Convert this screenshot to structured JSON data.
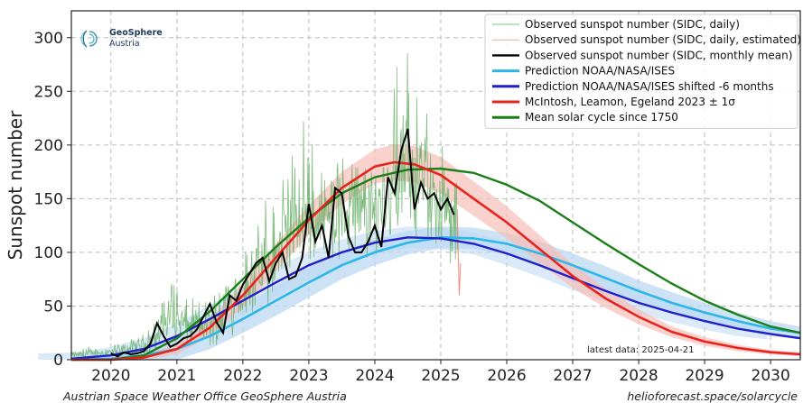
{
  "chart_data": {
    "type": "line",
    "ylabel": "Sunspot number",
    "xlim": [
      2019.4,
      2030.45
    ],
    "ylim": [
      0,
      325
    ],
    "x_ticks": [
      2020,
      2021,
      2022,
      2023,
      2024,
      2025,
      2026,
      2027,
      2028,
      2029,
      2030
    ],
    "x_tick_labels": [
      "2020",
      "2021",
      "2022",
      "2023",
      "2024",
      "2025",
      "2026",
      "2027",
      "2028",
      "2029",
      "2030"
    ],
    "y_ticks": [
      0,
      50,
      100,
      150,
      200,
      250,
      300
    ],
    "y_tick_labels": [
      "0",
      "50",
      "100",
      "150",
      "200",
      "250",
      "300"
    ],
    "grid": true,
    "legend_position": "top-right",
    "series": [
      {
        "name": "Observed sunspot number (SIDC, daily)",
        "color": "#6ab06a",
        "style": "thin-noisy",
        "envelope": {
          "x": [
            2019.4,
            2019.8,
            2020.2,
            2020.6,
            2020.9,
            2021.2,
            2021.5,
            2021.8,
            2022.1,
            2022.4,
            2022.7,
            2023.0,
            2023.3,
            2023.6,
            2023.9,
            2024.2,
            2024.5,
            2024.7,
            2024.9,
            2025.1,
            2025.25
          ],
          "low": [
            0,
            0,
            0,
            0,
            0,
            0,
            0,
            5,
            15,
            30,
            50,
            60,
            70,
            65,
            70,
            80,
            90,
            80,
            75,
            60,
            55
          ],
          "high": [
            10,
            15,
            20,
            35,
            90,
            70,
            75,
            100,
            140,
            160,
            210,
            230,
            210,
            240,
            210,
            260,
            290,
            270,
            245,
            230,
            200
          ]
        }
      },
      {
        "name": "Observed sunspot number (SIDC, daily, estimated)",
        "color": "#f4a8a0",
        "x": [
          2025.25,
          2025.28,
          2025.3
        ],
        "values": [
          140,
          60,
          90
        ]
      },
      {
        "name": "Observed sunspot number (SIDC, monthly mean)",
        "color": "#000000",
        "x": [
          2020.0,
          2020.1,
          2020.2,
          2020.3,
          2020.4,
          2020.5,
          2020.6,
          2020.7,
          2020.8,
          2020.9,
          2021.0,
          2021.1,
          2021.2,
          2021.3,
          2021.4,
          2021.5,
          2021.6,
          2021.7,
          2021.8,
          2021.9,
          2022.0,
          2022.1,
          2022.2,
          2022.3,
          2022.4,
          2022.5,
          2022.6,
          2022.7,
          2022.8,
          2022.9,
          2023.0,
          2023.1,
          2023.2,
          2023.3,
          2023.4,
          2023.5,
          2023.6,
          2023.7,
          2023.8,
          2023.9,
          2024.0,
          2024.1,
          2024.2,
          2024.3,
          2024.4,
          2024.5,
          2024.6,
          2024.7,
          2024.8,
          2024.9,
          2025.0,
          2025.1,
          2025.2
        ],
        "values": [
          6,
          3,
          7,
          5,
          6,
          8,
          15,
          34,
          22,
          12,
          15,
          20,
          22,
          28,
          40,
          52,
          35,
          25,
          60,
          55,
          70,
          80,
          90,
          95,
          73,
          90,
          100,
          75,
          78,
          95,
          145,
          110,
          125,
          95,
          160,
          155,
          115,
          100,
          100,
          110,
          125,
          105,
          170,
          155,
          195,
          215,
          140,
          165,
          150,
          155,
          140,
          150,
          135
        ]
      },
      {
        "name": "Prediction NOAA/NASA/ISES",
        "color": "#2bb7e8",
        "band_color": "#bcd8f2",
        "x": [
          2019.4,
          2020.0,
          2020.5,
          2021.0,
          2021.5,
          2022.0,
          2022.5,
          2023.0,
          2023.5,
          2024.0,
          2024.5,
          2025.0,
          2025.5,
          2026.0,
          2026.5,
          2027.0,
          2027.5,
          2028.0,
          2028.5,
          2029.0,
          2029.5,
          2030.0,
          2030.45
        ],
        "values": [
          0,
          1,
          4,
          10,
          22,
          38,
          55,
          72,
          88,
          100,
          109,
          114,
          113,
          108,
          99,
          88,
          76,
          64,
          53,
          44,
          36,
          29,
          25
        ],
        "band": [
          6,
          6,
          8,
          10,
          12,
          13,
          14,
          14,
          13,
          12,
          11,
          10,
          10,
          10,
          11,
          11,
          11,
          10,
          10,
          9,
          8,
          7,
          6
        ]
      },
      {
        "name": "Prediction NOAA/NASA/ISES shifted -6 months",
        "color": "#1f1fcc",
        "x": [
          2019.4,
          2020.0,
          2020.5,
          2021.0,
          2021.5,
          2022.0,
          2022.5,
          2023.0,
          2023.5,
          2024.0,
          2024.5,
          2025.0,
          2025.5,
          2026.0,
          2026.5,
          2027.0,
          2027.5,
          2028.0,
          2028.5,
          2029.0,
          2029.5,
          2030.0,
          2030.45
        ],
        "values": [
          1,
          4,
          10,
          22,
          38,
          55,
          72,
          88,
          100,
          109,
          114,
          113,
          108,
          99,
          88,
          76,
          64,
          53,
          44,
          36,
          29,
          24,
          20
        ]
      },
      {
        "name": "McIntosh, Leamon, Egeland 2023 ± 1σ",
        "color": "#e8231c",
        "band_color": "#f7bdb8",
        "x": [
          2019.4,
          2020.0,
          2020.5,
          2021.0,
          2021.5,
          2022.0,
          2022.5,
          2023.0,
          2023.5,
          2024.0,
          2024.3,
          2024.6,
          2025.0,
          2025.5,
          2026.0,
          2026.5,
          2027.0,
          2027.5,
          2028.0,
          2028.5,
          2029.0,
          2029.5,
          2030.0,
          2030.45
        ],
        "values": [
          0,
          0,
          2,
          10,
          30,
          60,
          95,
          130,
          160,
          180,
          184,
          182,
          172,
          150,
          128,
          103,
          78,
          57,
          40,
          26,
          17,
          11,
          7,
          5
        ],
        "band": [
          0,
          1,
          2,
          5,
          8,
          11,
          13,
          14,
          15,
          16,
          17,
          17,
          17,
          16,
          15,
          13,
          11,
          9,
          7,
          5,
          4,
          3,
          2,
          2
        ]
      },
      {
        "name": "Mean solar cycle since 1750",
        "color": "#1a7f16",
        "x": [
          2019.4,
          2020.0,
          2020.5,
          2021.0,
          2021.5,
          2022.0,
          2022.5,
          2023.0,
          2023.5,
          2024.0,
          2024.5,
          2025.0,
          2025.5,
          2026.0,
          2026.5,
          2027.0,
          2027.5,
          2028.0,
          2028.5,
          2029.0,
          2029.5,
          2030.0,
          2030.45
        ],
        "values": [
          0,
          0,
          4,
          20,
          45,
          75,
          105,
          132,
          155,
          170,
          177,
          178,
          174,
          163,
          148,
          128,
          108,
          89,
          71,
          55,
          42,
          31,
          25
        ]
      }
    ],
    "annotations": [
      "latest data: 2025-04-21"
    ]
  },
  "logo": {
    "line1": "GeoSphere",
    "line2": "Austria"
  },
  "footer": {
    "left": "Austrian Space Weather Office   GeoSphere Austria",
    "right": "helioforecast.space/solarcycle"
  }
}
